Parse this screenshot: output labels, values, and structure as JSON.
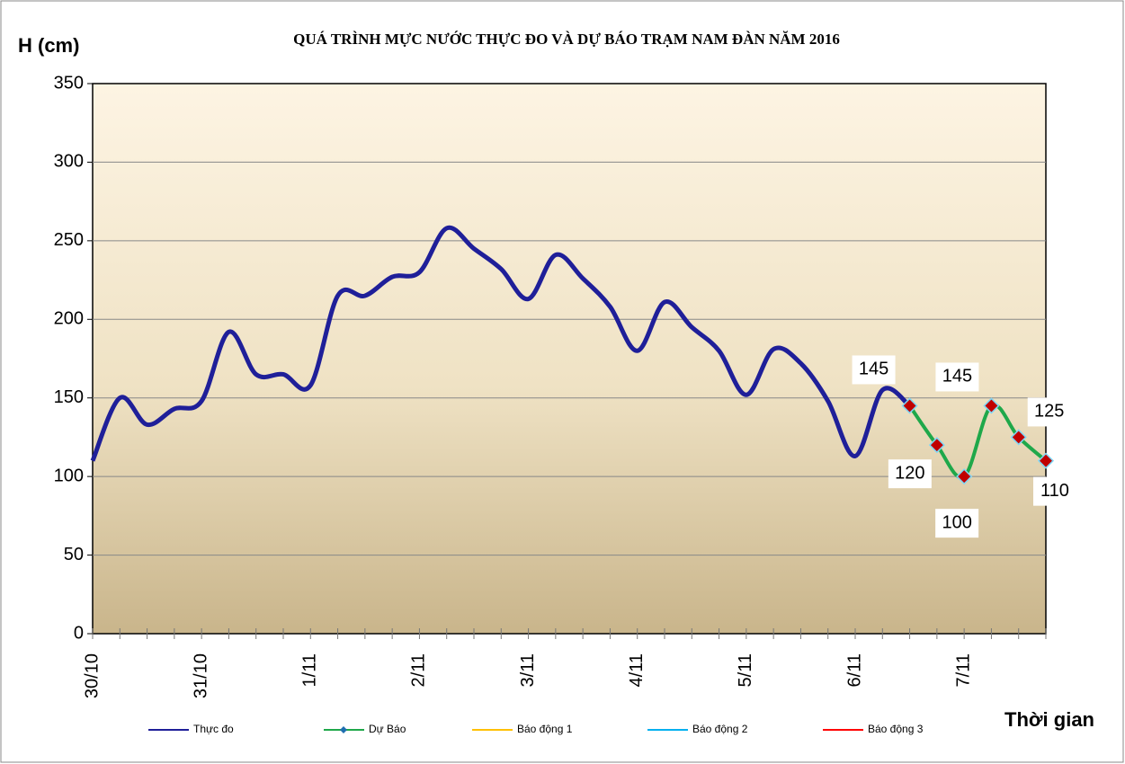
{
  "chart_data": {
    "type": "line",
    "title": "QUÁ TRÌNH MỰC NƯỚC THỰC ĐO VÀ DỰ BÁO TRẠM  NAM ĐÀN  NĂM 2016",
    "y_label": "H (cm)",
    "x_label": "Thời gian",
    "categories": [
      "30/10",
      null,
      null,
      null,
      "31/10",
      null,
      null,
      null,
      "1/11",
      null,
      null,
      null,
      "2/11",
      null,
      null,
      null,
      "3/11",
      null,
      null,
      null,
      "4/11",
      null,
      null,
      null,
      "5/11",
      null,
      null,
      null,
      "6/11",
      null,
      null,
      null,
      "7/11",
      null,
      null,
      null
    ],
    "series": [
      {
        "name": "Thực đo",
        "color": "#1f1f99",
        "values": [
          110,
          150,
          133,
          143,
          148,
          192,
          165,
          165,
          158,
          215,
          215,
          227,
          230,
          258,
          245,
          232,
          213,
          241,
          226,
          208,
          180,
          211,
          195,
          180,
          152,
          181,
          172,
          148,
          113,
          155,
          145,
          null,
          null,
          null,
          null,
          null
        ]
      },
      {
        "name": "Dự Báo",
        "color": "#1fa84a",
        "marker": "diamond",
        "marker_color": "#c00000",
        "data_labels": true,
        "values": [
          null,
          null,
          null,
          null,
          null,
          null,
          null,
          null,
          null,
          null,
          null,
          null,
          null,
          null,
          null,
          null,
          null,
          null,
          null,
          null,
          null,
          null,
          null,
          null,
          null,
          null,
          null,
          null,
          null,
          null,
          145,
          120,
          100,
          145,
          125,
          110
        ]
      },
      {
        "name": "Báo động 1",
        "color": "#ffc000",
        "values": [
          null,
          null,
          null,
          null,
          null,
          null,
          null,
          null,
          null,
          null,
          null,
          null,
          null,
          null,
          null,
          null,
          null,
          null,
          null,
          null,
          null,
          null,
          null,
          null,
          null,
          null,
          null,
          null,
          null,
          null,
          null,
          null,
          null,
          null,
          null,
          null
        ]
      },
      {
        "name": "Báo động 2",
        "color": "#00b0f0",
        "values": [
          null,
          null,
          null,
          null,
          null,
          null,
          null,
          null,
          null,
          null,
          null,
          null,
          null,
          null,
          null,
          null,
          null,
          null,
          null,
          null,
          null,
          null,
          null,
          null,
          null,
          null,
          null,
          null,
          null,
          null,
          null,
          null,
          null,
          null,
          null,
          null
        ]
      },
      {
        "name": "Báo động 3",
        "color": "#ff0000",
        "values": [
          null,
          null,
          null,
          null,
          null,
          null,
          null,
          null,
          null,
          null,
          null,
          null,
          null,
          null,
          null,
          null,
          null,
          null,
          null,
          null,
          null,
          null,
          null,
          null,
          null,
          null,
          null,
          null,
          null,
          null,
          null,
          null,
          null,
          null,
          null,
          null
        ]
      }
    ],
    "ylim": [
      0,
      350
    ],
    "yticks": [
      0,
      50,
      100,
      150,
      200,
      250,
      300,
      350
    ],
    "grid": true,
    "legend": "bottom"
  }
}
